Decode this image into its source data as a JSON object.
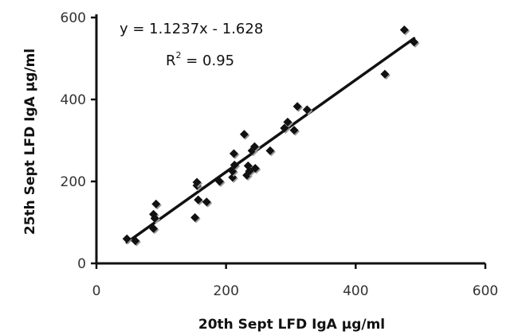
{
  "chart_data": {
    "type": "scatter",
    "title": "",
    "xlabel": "20th Sept LFD IgA µg/ml",
    "ylabel": "25th Sept  LFD IgA µg/ml",
    "xlim": [
      0,
      600
    ],
    "ylim": [
      0,
      600
    ],
    "xticks": [
      0,
      200,
      400,
      600
    ],
    "yticks": [
      0,
      200,
      400,
      600
    ],
    "grid": false,
    "legend": "none",
    "marker": "diamond",
    "marker_color": "#111111",
    "series": [
      {
        "points": [
          [
            47,
            60
          ],
          [
            60,
            55
          ],
          [
            88,
            85
          ],
          [
            88,
            120
          ],
          [
            92,
            145
          ],
          [
            90,
            110
          ],
          [
            152,
            112
          ],
          [
            155,
            190
          ],
          [
            155,
            198
          ],
          [
            157,
            155
          ],
          [
            170,
            150
          ],
          [
            190,
            200
          ],
          [
            210,
            210
          ],
          [
            210,
            225
          ],
          [
            212,
            268
          ],
          [
            213,
            240
          ],
          [
            228,
            315
          ],
          [
            232,
            215
          ],
          [
            234,
            238
          ],
          [
            236,
            225
          ],
          [
            240,
            275
          ],
          [
            244,
            285
          ],
          [
            245,
            232
          ],
          [
            268,
            275
          ],
          [
            290,
            330
          ],
          [
            295,
            345
          ],
          [
            305,
            325
          ],
          [
            310,
            383
          ],
          [
            325,
            375
          ],
          [
            445,
            462
          ],
          [
            475,
            570
          ],
          [
            490,
            540
          ]
        ]
      }
    ],
    "trendline": {
      "slope": 1.1237,
      "intercept": -1.628,
      "x_range": [
        47,
        490
      ],
      "equation_label": "y = 1.1237x - 1.628",
      "r2_prefix": "R",
      "r2_sup": "2",
      "r2_value": " = 0.95"
    }
  }
}
